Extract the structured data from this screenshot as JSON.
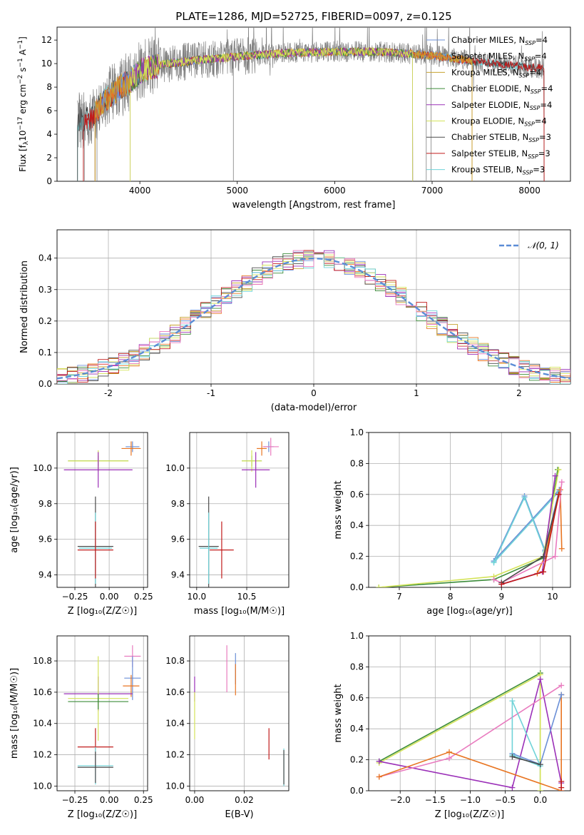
{
  "figure": {
    "title": "PLATE=1286, MJD=52725, FIBERID=0097, z=0.125"
  },
  "colors": {
    "Chabrier MILES": "#6b8fd6",
    "Salpeter MILES": "#e87522",
    "Kroupa MILES": "#c7a22f",
    "Chabrier ELODIE": "#3c8c3a",
    "Salpeter ELODIE": "#9b30b8",
    "Kroupa ELODIE": "#d4e35a",
    "Chabrier STELIB": "#4a4a4a",
    "Salpeter STELIB": "#c11b1b",
    "Kroupa STELIB": "#6fd3d8",
    "Salpeter ELODIE alt": "#e97bbf",
    "data": "#808080",
    "normal": "#5b8dd6"
  },
  "chart_data": [
    {
      "type": "line",
      "id": "spectrum",
      "xlabel": "wavelength [Angstrom, rest frame]",
      "ylabel": "Flux [f$_\\lambda$10$^{-17}$ erg cm$^{-2}$ s$^{-1}$ A$^{-1}$]",
      "xlim": [
        3150,
        8420
      ],
      "ylim": [
        0,
        13.1
      ],
      "xticks": [
        4000,
        5000,
        6000,
        7000,
        8000
      ],
      "yticks": [
        0,
        2,
        4,
        6,
        8,
        10,
        12
      ],
      "grid": false,
      "legend_position": "right",
      "legend": [
        {
          "name": "Chabrier MILES",
          "label": "Chabrier MILES, N",
          "sub": "SSP",
          "suffix": "=4"
        },
        {
          "name": "Salpeter MILES",
          "label": "Salpeter MILES, N",
          "sub": "SSP",
          "suffix": "=4"
        },
        {
          "name": "Kroupa MILES",
          "label": "Kroupa MILES, N",
          "sub": "SSP",
          "suffix": "=4"
        },
        {
          "name": "Chabrier ELODIE",
          "label": "Chabrier ELODIE, N",
          "sub": "SSP",
          "suffix": "=4"
        },
        {
          "name": "Salpeter ELODIE",
          "label": "Salpeter ELODIE, N",
          "sub": "SSP",
          "suffix": "=4"
        },
        {
          "name": "Kroupa ELODIE",
          "label": "Kroupa ELODIE, N",
          "sub": "SSP",
          "suffix": "=4"
        },
        {
          "name": "Chabrier STELIB",
          "label": "Chabrier STELIB, N",
          "sub": "SSP",
          "suffix": "=3"
        },
        {
          "name": "Salpeter STELIB",
          "label": "Salpeter STELIB, N",
          "sub": "SSP",
          "suffix": "=3"
        },
        {
          "name": "Kroupa STELIB",
          "label": "Kroupa STELIB, N",
          "sub": "SSP",
          "suffix": "=3"
        }
      ],
      "continuum": [
        [
          3350,
          5.2
        ],
        [
          3500,
          5.3
        ],
        [
          3600,
          6.5
        ],
        [
          3700,
          7.3
        ],
        [
          3800,
          8.0
        ],
        [
          3900,
          8.5
        ],
        [
          4000,
          9.3
        ],
        [
          4100,
          9.7
        ],
        [
          4300,
          10.0
        ],
        [
          4600,
          10.3
        ],
        [
          5000,
          10.6
        ],
        [
          5500,
          10.9
        ],
        [
          6000,
          11.0
        ],
        [
          6500,
          11.0
        ],
        [
          7000,
          10.7
        ],
        [
          7500,
          10.1
        ],
        [
          8000,
          9.7
        ],
        [
          8150,
          9.6
        ]
      ],
      "model_ranges": [
        {
          "name": "Kroupa STELIB",
          "start": 3360,
          "end": 8150
        },
        {
          "name": "Chabrier STELIB",
          "start": 3360,
          "end": 8150
        },
        {
          "name": "Salpeter STELIB",
          "start": 3420,
          "end": 8150
        },
        {
          "name": "Chabrier MILES",
          "start": 3540,
          "end": 7410
        },
        {
          "name": "Salpeter MILES",
          "start": 3540,
          "end": 7410
        },
        {
          "name": "Kroupa MILES",
          "start": 3540,
          "end": 7410
        },
        {
          "name": "Chabrier ELODIE",
          "start": 3900,
          "end": 6800
        },
        {
          "name": "Salpeter ELODIE",
          "start": 3900,
          "end": 6800
        },
        {
          "name": "Kroupa ELODIE",
          "start": 3900,
          "end": 6800
        }
      ]
    },
    {
      "type": "line",
      "id": "residuals",
      "xlabel": "(data-model)/error",
      "ylabel": "Normed distribution",
      "xlim": [
        -2.5,
        2.5
      ],
      "ylim": [
        0,
        0.49
      ],
      "xticks": [
        -2,
        -1,
        0,
        1,
        2
      ],
      "yticks": [
        0.0,
        0.1,
        0.2,
        0.3,
        0.4
      ],
      "grid": true,
      "legend_position": "top-right",
      "legend": [
        {
          "name": "normal",
          "label": "𝒩(0, 1)"
        }
      ],
      "bin_width": 0.1,
      "histograms": [
        {
          "name": "Chabrier MILES",
          "seed": 1
        },
        {
          "name": "Salpeter MILES",
          "seed": 2
        },
        {
          "name": "Kroupa MILES",
          "seed": 3
        },
        {
          "name": "Chabrier ELODIE",
          "seed": 4
        },
        {
          "name": "Salpeter ELODIE",
          "seed": 5
        },
        {
          "name": "Kroupa ELODIE",
          "seed": 6
        },
        {
          "name": "Chabrier STELIB",
          "seed": 7
        },
        {
          "name": "Salpeter STELIB",
          "seed": 8
        },
        {
          "name": "Kroupa STELIB",
          "seed": 9
        },
        {
          "name": "Salpeter ELODIE alt",
          "seed": 10
        }
      ]
    },
    {
      "type": "scatter",
      "id": "age-vs-Z",
      "xlabel": "Z [log₁₀(Z/Z☉)]",
      "ylabel": "age  [log₁₀(age/yr)]",
      "xlim": [
        -0.38,
        0.28
      ],
      "ylim": [
        9.33,
        10.2
      ],
      "xticks": [
        -0.25,
        0.0,
        0.25
      ],
      "xticklabels": [
        "−0.25",
        "0.00",
        "0.25"
      ],
      "yticks": [
        9.4,
        9.6,
        9.8,
        10.0
      ],
      "grid": true,
      "errorbars": [
        {
          "name": "Chabrier MILES",
          "x": 0.17,
          "xerr": 0.05,
          "y": 10.12,
          "yerr": 0.03
        },
        {
          "name": "Salpeter MILES",
          "x": 0.16,
          "xerr": 0.07,
          "y": 10.11,
          "yerr": 0.04
        },
        {
          "name": "Chabrier ELODIE",
          "x": -0.08,
          "xerr": 0.22,
          "y": 10.04,
          "yerr": 0.03
        },
        {
          "name": "Kroupa ELODIE",
          "x": -0.08,
          "xerr": 0.22,
          "y": 10.04,
          "yerr": 0.06
        },
        {
          "name": "Salpeter ELODIE",
          "x": -0.08,
          "xerr": 0.25,
          "y": 9.99,
          "yerr": 0.1
        },
        {
          "name": "Chabrier STELIB",
          "x": -0.1,
          "xerr": 0.13,
          "y": 9.56,
          "yerr": 0.28
        },
        {
          "name": "Kroupa STELIB",
          "x": -0.1,
          "xerr": 0.12,
          "y": 9.55,
          "yerr": 0.2
        },
        {
          "name": "Salpeter STELIB",
          "x": -0.1,
          "xerr": 0.13,
          "y": 9.54,
          "yerr": 0.16
        }
      ]
    },
    {
      "type": "scatter",
      "id": "age-vs-mass",
      "xlabel": "mass [log₁₀(M/M☉)]",
      "ylabel": "",
      "xlim": [
        9.93,
        10.92
      ],
      "ylim": [
        9.33,
        10.2
      ],
      "xticks": [
        10.0,
        10.5
      ],
      "xticklabels": [
        "10.0",
        "10.5"
      ],
      "yticks": [
        9.4,
        9.6,
        9.8,
        10.0
      ],
      "grid": true,
      "errorbars": [
        {
          "name": "Chabrier MILES",
          "x": 10.72,
          "xerr": 0.05,
          "y": 10.12,
          "yerr": 0.03
        },
        {
          "name": "Salpeter ELODIE alt",
          "x": 10.74,
          "xerr": 0.08,
          "y": 10.12,
          "yerr": 0.05
        },
        {
          "name": "Salpeter MILES",
          "x": 10.65,
          "xerr": 0.05,
          "y": 10.11,
          "yerr": 0.04
        },
        {
          "name": "Chabrier ELODIE",
          "x": 10.55,
          "xerr": 0.1,
          "y": 10.04,
          "yerr": 0.03
        },
        {
          "name": "Kroupa ELODIE",
          "x": 10.55,
          "xerr": 0.1,
          "y": 10.04,
          "yerr": 0.06
        },
        {
          "name": "Salpeter ELODIE",
          "x": 10.59,
          "xerr": 0.14,
          "y": 9.99,
          "yerr": 0.1
        },
        {
          "name": "Chabrier STELIB",
          "x": 10.12,
          "xerr": 0.1,
          "y": 9.56,
          "yerr": 0.28
        },
        {
          "name": "Kroupa STELIB",
          "x": 10.12,
          "xerr": 0.09,
          "y": 9.55,
          "yerr": 0.2
        },
        {
          "name": "Salpeter STELIB",
          "x": 10.25,
          "xerr": 0.12,
          "y": 9.54,
          "yerr": 0.16
        }
      ]
    },
    {
      "type": "line",
      "id": "weight-vs-age",
      "xlabel": "age  [log₁₀(age/yr)]",
      "ylabel": "mass weight",
      "xlim": [
        6.4,
        10.35
      ],
      "ylim": [
        0,
        1.0
      ],
      "xticks": [
        7,
        8,
        9,
        10
      ],
      "yticks": [
        0.0,
        0.2,
        0.4,
        0.6,
        0.8,
        1.0
      ],
      "grid": true,
      "series": [
        {
          "name": "Chabrier MILES",
          "points": [
            [
              8.85,
              0.17
            ],
            [
              9.45,
              0.59
            ],
            [
              9.85,
              0.24
            ],
            [
              10.13,
              0.63
            ],
            [
              8.85,
              0.17
            ]
          ]
        },
        {
          "name": "Kroupa STELIB",
          "points": [
            [
              8.85,
              0.16
            ],
            [
              9.45,
              0.58
            ],
            [
              9.85,
              0.23
            ],
            [
              10.13,
              0.62
            ],
            [
              8.85,
              0.16
            ]
          ]
        },
        {
          "name": "Salpeter MILES",
          "points": [
            [
              9.7,
              0.09
            ],
            [
              9.85,
              0.2
            ],
            [
              10.15,
              0.63
            ],
            [
              10.18,
              0.25
            ]
          ]
        },
        {
          "name": "Chabrier ELODIE",
          "points": [
            [
              6.6,
              0.0
            ],
            [
              8.85,
              0.05
            ],
            [
              9.82,
              0.19
            ],
            [
              10.1,
              0.76
            ]
          ]
        },
        {
          "name": "Kroupa ELODIE",
          "points": [
            [
              6.6,
              0.0
            ],
            [
              8.85,
              0.07
            ],
            [
              9.82,
              0.2
            ],
            [
              10.12,
              0.76
            ]
          ]
        },
        {
          "name": "Salpeter ELODIE",
          "points": [
            [
              9.0,
              0.02
            ],
            [
              9.8,
              0.1
            ],
            [
              10.05,
              0.72
            ]
          ]
        },
        {
          "name": "Salpeter ELODIE alt",
          "points": [
            [
              8.85,
              0.05
            ],
            [
              9.0,
              0.03
            ],
            [
              10.05,
              0.2
            ],
            [
              10.18,
              0.68
            ]
          ]
        },
        {
          "name": "Chabrier STELIB",
          "points": [
            [
              9.0,
              0.03
            ],
            [
              9.82,
              0.2
            ],
            [
              10.12,
              0.6
            ]
          ]
        },
        {
          "name": "Salpeter STELIB",
          "points": [
            [
              9.0,
              0.02
            ],
            [
              9.82,
              0.1
            ],
            [
              10.12,
              0.6
            ]
          ]
        }
      ]
    },
    {
      "type": "scatter",
      "id": "mass-vs-Z",
      "xlabel": "Z [log₁₀(Z/Z☉)]",
      "ylabel": "mass [log₁₀(M/M☉)]",
      "xlim": [
        -0.38,
        0.28
      ],
      "ylim": [
        9.97,
        10.96
      ],
      "xticks": [
        -0.25,
        0.0,
        0.25
      ],
      "xticklabels": [
        "−0.25",
        "0.00",
        "0.25"
      ],
      "yticks": [
        10.0,
        10.2,
        10.4,
        10.6,
        10.8
      ],
      "grid": true,
      "errorbars": [
        {
          "name": "Salpeter ELODIE alt",
          "x": 0.17,
          "xerr": 0.06,
          "y": 10.83,
          "yerr": 0.07
        },
        {
          "name": "Chabrier MILES",
          "x": 0.17,
          "xerr": 0.06,
          "y": 10.69,
          "yerr": 0.14
        },
        {
          "name": "Salpeter MILES",
          "x": 0.16,
          "xerr": 0.06,
          "y": 10.64,
          "yerr": 0.07
        },
        {
          "name": "Salpeter ELODIE",
          "x": -0.08,
          "xerr": 0.25,
          "y": 10.59,
          "yerr": 0.11
        },
        {
          "name": "Kroupa ELODIE",
          "x": -0.08,
          "xerr": 0.22,
          "y": 10.56,
          "yerr": 0.27
        },
        {
          "name": "Chabrier ELODIE",
          "x": -0.08,
          "xerr": 0.22,
          "y": 10.54,
          "yerr": 0.05
        },
        {
          "name": "Salpeter STELIB",
          "x": -0.1,
          "xerr": 0.13,
          "y": 10.25,
          "yerr": 0.12
        },
        {
          "name": "Kroupa STELIB",
          "x": -0.1,
          "xerr": 0.13,
          "y": 10.13,
          "yerr": 0.12
        },
        {
          "name": "Chabrier STELIB",
          "x": -0.1,
          "xerr": 0.13,
          "y": 10.12,
          "yerr": 0.1
        }
      ]
    },
    {
      "type": "scatter",
      "id": "mass-vs-ebv",
      "xlabel": "E(B-V)",
      "ylabel": "",
      "xlim": [
        -0.002,
        0.038
      ],
      "ylim": [
        9.97,
        10.96
      ],
      "xticks": [
        0.0,
        0.02
      ],
      "xticklabels": [
        "0.00",
        "0.02"
      ],
      "yticks": [
        10.0,
        10.2,
        10.4,
        10.6,
        10.8
      ],
      "grid": true,
      "errorbars": [
        {
          "name": "Salpeter ELODIE alt",
          "x": 0.013,
          "xerr": 0,
          "y": 10.75,
          "yerr": 0.15
        },
        {
          "name": "Chabrier MILES",
          "x": 0.0165,
          "xerr": 0,
          "y": 10.75,
          "yerr": 0.1
        },
        {
          "name": "Salpeter MILES",
          "x": 0.0165,
          "xerr": 0,
          "y": 10.68,
          "yerr": 0.1
        },
        {
          "name": "Salpeter ELODIE",
          "x": 0.0,
          "xerr": 0,
          "y": 10.62,
          "yerr": 0.08
        },
        {
          "name": "Kroupa ELODIE",
          "x": 0.0,
          "xerr": 0,
          "y": 10.45,
          "yerr": 0.15
        },
        {
          "name": "Salpeter STELIB",
          "x": 0.03,
          "xerr": 0,
          "y": 10.27,
          "yerr": 0.1
        },
        {
          "name": "Kroupa STELIB",
          "x": 0.036,
          "xerr": 0,
          "y": 10.12,
          "yerr": 0.12
        },
        {
          "name": "Chabrier STELIB",
          "x": 0.036,
          "xerr": 0,
          "y": 10.12,
          "yerr": 0.11
        }
      ]
    },
    {
      "type": "line",
      "id": "weight-vs-Z",
      "xlabel": "Z [log₁₀(Z/Z☉)]",
      "ylabel": "mass weight",
      "xlim": [
        -2.45,
        0.43
      ],
      "ylim": [
        0,
        1.0
      ],
      "xticks": [
        -2.0,
        -1.5,
        -1.0,
        -0.5,
        0.0
      ],
      "xticklabels": [
        "−2.0",
        "−1.5",
        "−1.0",
        "−0.5",
        "0.0"
      ],
      "yticks": [
        0.0,
        0.2,
        0.4,
        0.6,
        0.8,
        1.0
      ],
      "grid": true,
      "series": [
        {
          "name": "Chabrier ELODIE",
          "points": [
            [
              -2.3,
              0.19
            ],
            [
              0.0,
              0.76
            ],
            [
              0.0,
              0.0
            ]
          ]
        },
        {
          "name": "Kroupa ELODIE",
          "points": [
            [
              -2.3,
              0.18
            ],
            [
              0.0,
              0.75
            ],
            [
              0.0,
              0.0
            ]
          ]
        },
        {
          "name": "Salpeter ELODIE",
          "points": [
            [
              -2.3,
              0.19
            ],
            [
              -0.4,
              0.02
            ],
            [
              0.0,
              0.72
            ],
            [
              0.3,
              0.05
            ],
            [
              0.3,
              0.0
            ]
          ]
        },
        {
          "name": "Salpeter ELODIE alt",
          "points": [
            [
              -2.3,
              0.09
            ],
            [
              -1.3,
              0.21
            ],
            [
              0.3,
              0.68
            ]
          ]
        },
        {
          "name": "Salpeter MILES",
          "points": [
            [
              -2.3,
              0.09
            ],
            [
              -1.3,
              0.25
            ],
            [
              0.3,
              0.0
            ],
            [
              0.3,
              0.62
            ]
          ]
        },
        {
          "name": "Chabrier MILES",
          "points": [
            [
              -0.4,
              0.24
            ],
            [
              0.0,
              0.17
            ],
            [
              0.3,
              0.62
            ]
          ]
        },
        {
          "name": "Kroupa STELIB",
          "points": [
            [
              -0.4,
              0.23
            ],
            [
              0.0,
              0.16
            ],
            [
              -0.4,
              0.58
            ],
            [
              -0.4,
              0.23
            ]
          ]
        },
        {
          "name": "Chabrier STELIB",
          "points": [
            [
              -0.4,
              0.22
            ],
            [
              0.0,
              0.17
            ]
          ]
        },
        {
          "name": "Salpeter STELIB",
          "points": [
            [
              0.3,
              0.02
            ],
            [
              0.3,
              0.06
            ]
          ]
        }
      ]
    }
  ]
}
